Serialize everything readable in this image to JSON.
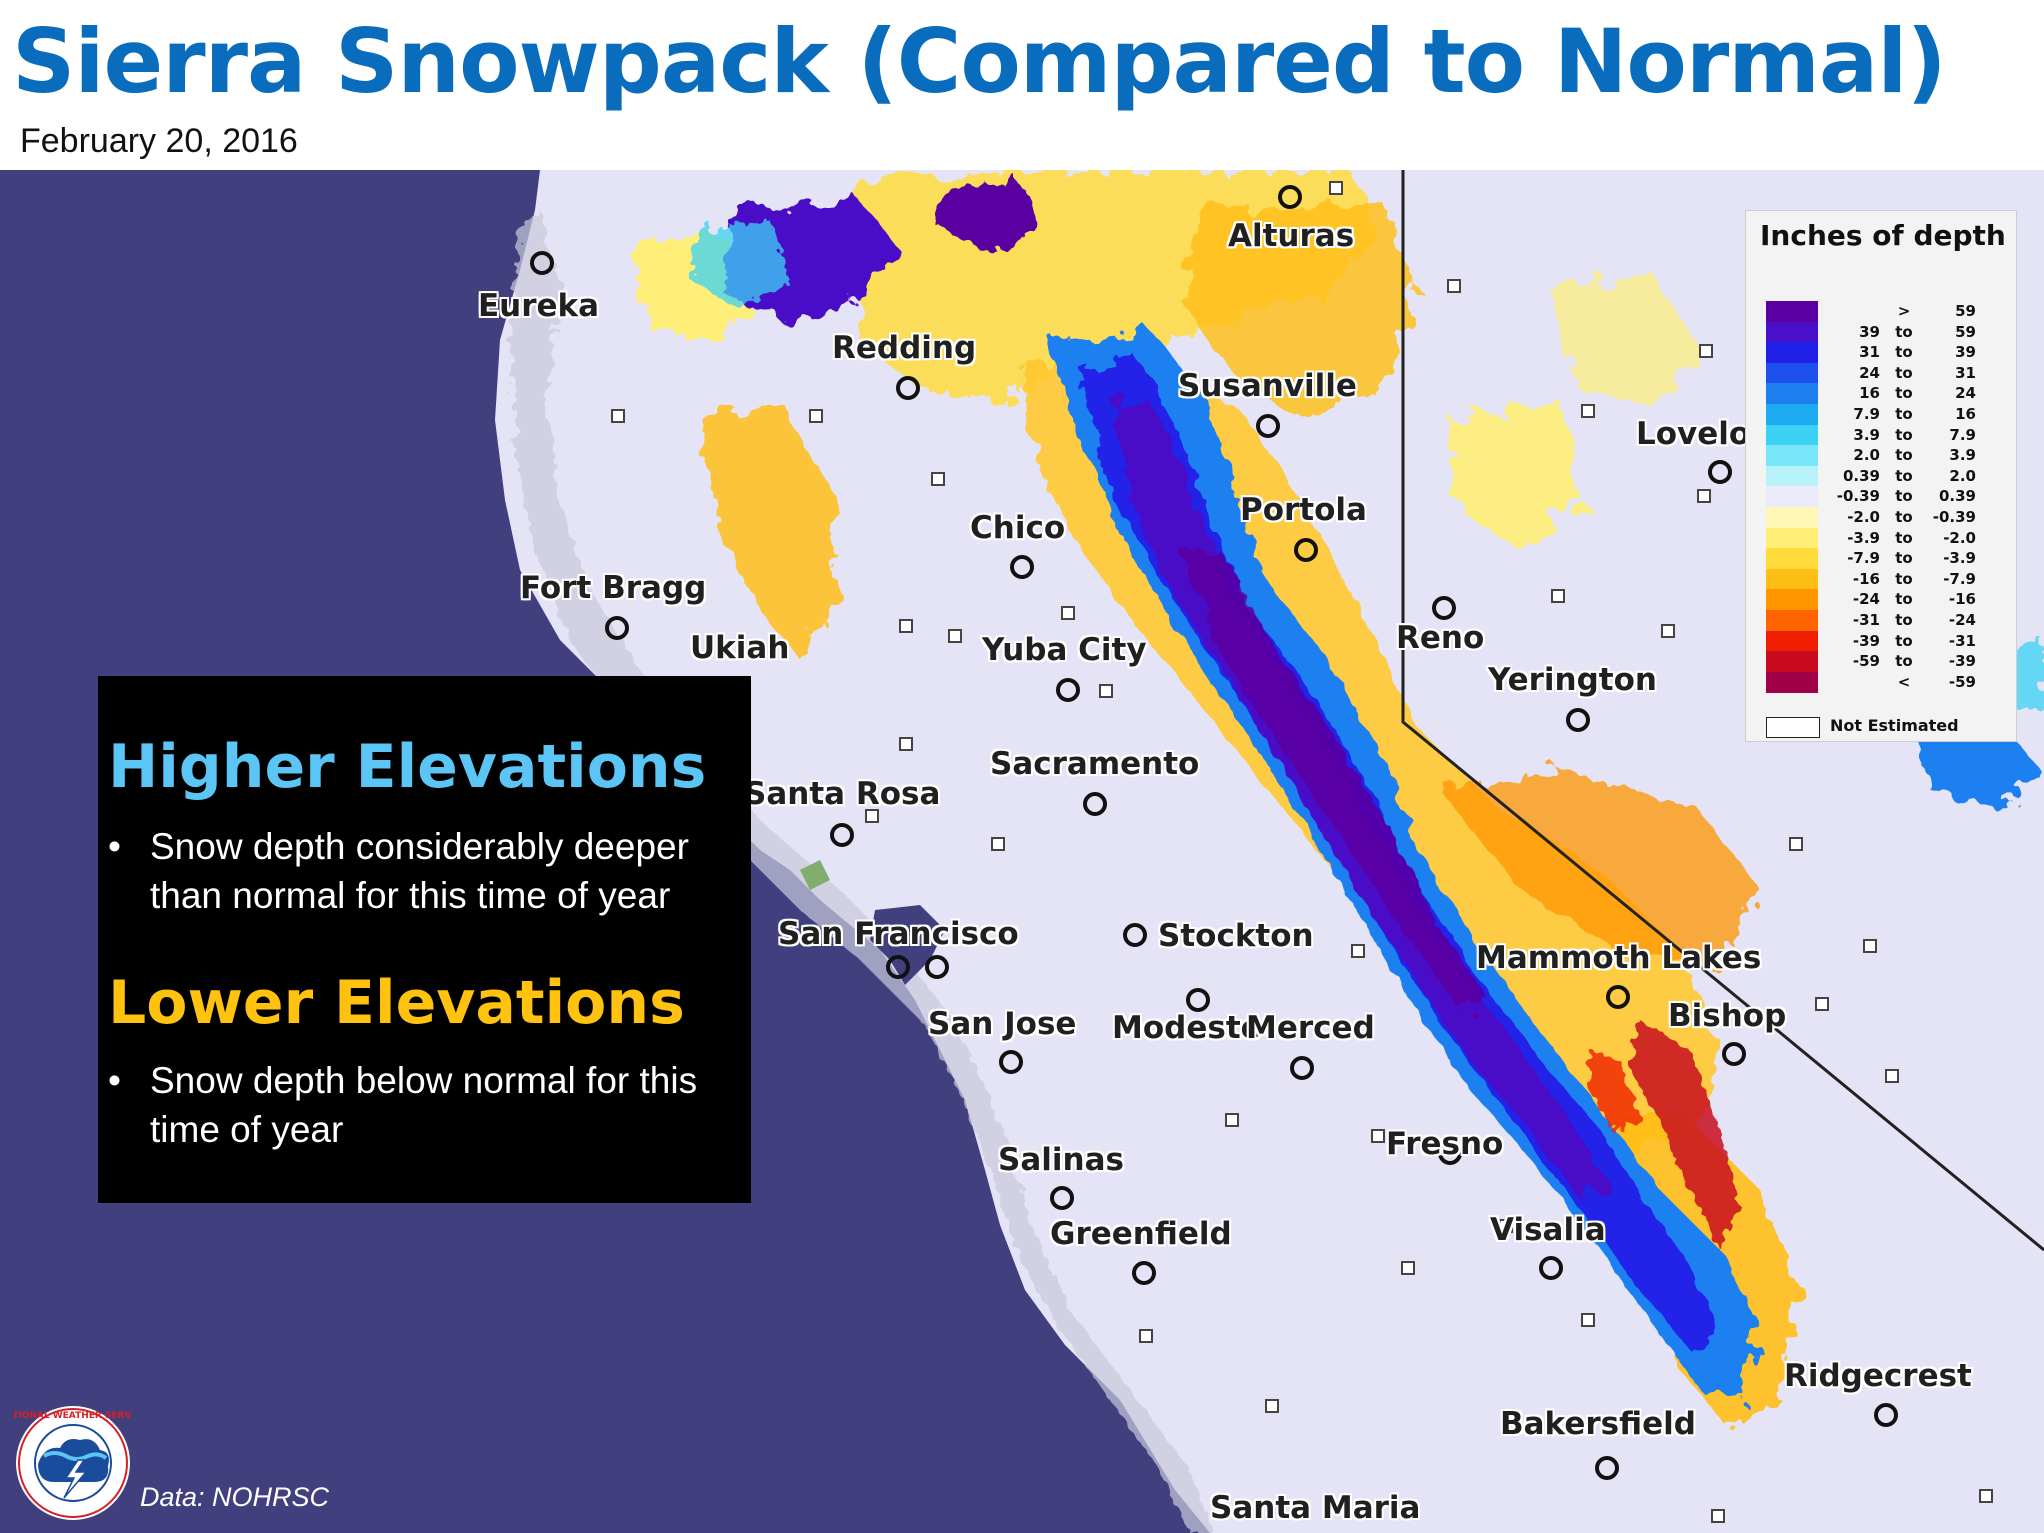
{
  "title": "Sierra Snowpack (Compared to Normal)",
  "date": "February 20, 2016",
  "legend": {
    "title": "Inches of depth",
    "rows": [
      {
        "lo": "",
        "to": ">",
        "hi": "59",
        "color": "#5a00a0"
      },
      {
        "lo": "39",
        "to": "to",
        "hi": "59",
        "color": "#4a10c8"
      },
      {
        "lo": "31",
        "to": "to",
        "hi": "39",
        "color": "#2020e8"
      },
      {
        "lo": "24",
        "to": "to",
        "hi": "31",
        "color": "#1e50f0"
      },
      {
        "lo": "16",
        "to": "to",
        "hi": "24",
        "color": "#1e80f0"
      },
      {
        "lo": "7.9",
        "to": "to",
        "hi": "16",
        "color": "#1eaaf0"
      },
      {
        "lo": "3.9",
        "to": "to",
        "hi": "7.9",
        "color": "#3cd2f5"
      },
      {
        "lo": "2.0",
        "to": "to",
        "hi": "3.9",
        "color": "#78e6f8"
      },
      {
        "lo": "0.39",
        "to": "to",
        "hi": "2.0",
        "color": "#b8f2fa"
      },
      {
        "lo": "-0.39",
        "to": "to",
        "hi": "0.39",
        "color": "#eaeafa"
      },
      {
        "lo": "-2.0",
        "to": "to",
        "hi": "-0.39",
        "color": "#fff5b4"
      },
      {
        "lo": "-3.9",
        "to": "to",
        "hi": "-2.0",
        "color": "#ffee78"
      },
      {
        "lo": "-7.9",
        "to": "to",
        "hi": "-3.9",
        "color": "#ffdc3c"
      },
      {
        "lo": "-16",
        "to": "to",
        "hi": "-7.9",
        "color": "#ffbe14"
      },
      {
        "lo": "-24",
        "to": "to",
        "hi": "-16",
        "color": "#ff9600"
      },
      {
        "lo": "-31",
        "to": "to",
        "hi": "-24",
        "color": "#ff6400"
      },
      {
        "lo": "-39",
        "to": "to",
        "hi": "-31",
        "color": "#f01e00"
      },
      {
        "lo": "-59",
        "to": "to",
        "hi": "-39",
        "color": "#c80a1e"
      },
      {
        "lo": "",
        "to": "<",
        "hi": "-59",
        "color": "#a00046"
      }
    ],
    "not_estimated": "Not Estimated"
  },
  "panel": {
    "higher_heading": "Higher Elevations",
    "higher_text": "Snow depth considerably deeper than normal for this time of year",
    "lower_heading": "Lower Elevations",
    "lower_text": "Snow depth below normal for this time of year",
    "bullet": "•",
    "higher_color": "#5bc6f5",
    "lower_color": "#ffc20e"
  },
  "cities": [
    {
      "name": "Alturas"
    },
    {
      "name": "Eureka"
    },
    {
      "name": "Redding"
    },
    {
      "name": "Susanville"
    },
    {
      "name": "Lovelo"
    },
    {
      "name": "Chico"
    },
    {
      "name": "Portola"
    },
    {
      "name": "Fort Bragg"
    },
    {
      "name": "Ukiah"
    },
    {
      "name": "Yuba City"
    },
    {
      "name": "Reno"
    },
    {
      "name": "Yerington"
    },
    {
      "name": "Sacramento"
    },
    {
      "name": "Santa Rosa"
    },
    {
      "name": "San Francisco"
    },
    {
      "name": "Stockton"
    },
    {
      "name": "Mammoth Lakes"
    },
    {
      "name": "Bishop"
    },
    {
      "name": "San Jose"
    },
    {
      "name": "Modesto"
    },
    {
      "name": "Merced"
    },
    {
      "name": "Fresno"
    },
    {
      "name": "Salinas"
    },
    {
      "name": "Greenfield"
    },
    {
      "name": "Visalia"
    },
    {
      "name": "Ridgecrest"
    },
    {
      "name": "Bakersfield"
    },
    {
      "name": "Santa Maria"
    }
  ],
  "credit": "Data: NOHRSC",
  "logo_text": "NATIONAL WEATHER SERVICE",
  "colors": {
    "title": "#0a6cbd",
    "ocean": "#413f7e",
    "land": "#e4e4f6"
  }
}
